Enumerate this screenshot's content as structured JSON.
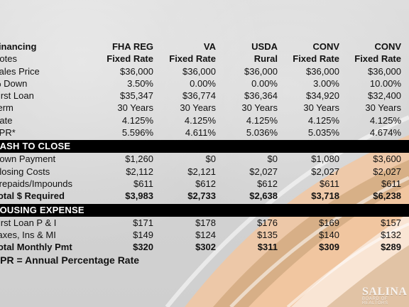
{
  "header_row": {
    "label": "Financing",
    "cols": [
      "FHA REG",
      "VA",
      "USDA",
      "CONV",
      "CONV"
    ]
  },
  "notes_row": {
    "label": "Notes",
    "cols": [
      "Fixed Rate",
      "Fixed Rate",
      "Rural",
      "Fixed Rate",
      "Fixed Rate"
    ]
  },
  "rows_top": [
    {
      "label": "Sales Price",
      "cols": [
        "$36,000",
        "$36,000",
        "$36,000",
        "$36,000",
        "$36,000"
      ]
    },
    {
      "label": "% Down",
      "cols": [
        "3.50%",
        "0.00%",
        "0.00%",
        "3.00%",
        "10.00%"
      ]
    },
    {
      "label": "First Loan",
      "cols": [
        "$35,347",
        "$36,774",
        "$36,364",
        "$34,920",
        "$32,400"
      ]
    },
    {
      "label": "Term",
      "cols": [
        "30 Years",
        "30 Years",
        "30 Years",
        "30 Years",
        "30 Years"
      ]
    },
    {
      "label": "Rate",
      "cols": [
        "4.125%",
        "4.125%",
        "4.125%",
        "4.125%",
        "4.125%"
      ]
    },
    {
      "label": "APR*",
      "cols": [
        "5.596%",
        "4.611%",
        "5.036%",
        "5.035%",
        "4.674%"
      ]
    }
  ],
  "section_cash": {
    "title": "CASH TO CLOSE",
    "rows": [
      {
        "label": "Down Payment",
        "cols": [
          "$1,260",
          "$0",
          "$0",
          "$1,080",
          "$3,600"
        ]
      },
      {
        "label": "Closing Costs",
        "cols": [
          "$2,112",
          "$2,121",
          "$2,027",
          "$2,027",
          "$2,027"
        ]
      },
      {
        "label": "Prepaids/Impounds",
        "cols": [
          "$611",
          "$612",
          "$612",
          "$611",
          "$611"
        ]
      },
      {
        "label": "Total $ Required",
        "cols": [
          "$3,983",
          "$2,733",
          "$2,638",
          "$3,718",
          "$6,238"
        ]
      }
    ]
  },
  "section_housing": {
    "title": "HOUSING EXPENSE",
    "rows": [
      {
        "label": "First Loan P & I",
        "cols": [
          "$171",
          "$178",
          "$176",
          "$169",
          "$157"
        ]
      },
      {
        "label": "Taxes, Ins & MI",
        "cols": [
          "$149",
          "$124",
          "$135",
          "$140",
          "$132"
        ]
      },
      {
        "label": "Total Monthly Pmt",
        "cols": [
          "$320",
          "$302",
          "$311",
          "$309",
          "$289"
        ]
      }
    ]
  },
  "footnote": "APR = Annual Percentage Rate",
  "logo": {
    "text": "SALINA",
    "subtext": "BOARD OF REALTORS"
  },
  "colors": {
    "background": "#d6d6d6",
    "band_black": "#000000",
    "swoosh_peach": "#f2c7a1",
    "swoosh_tan": "#c49a6c",
    "swoosh_white": "#ffffff"
  }
}
